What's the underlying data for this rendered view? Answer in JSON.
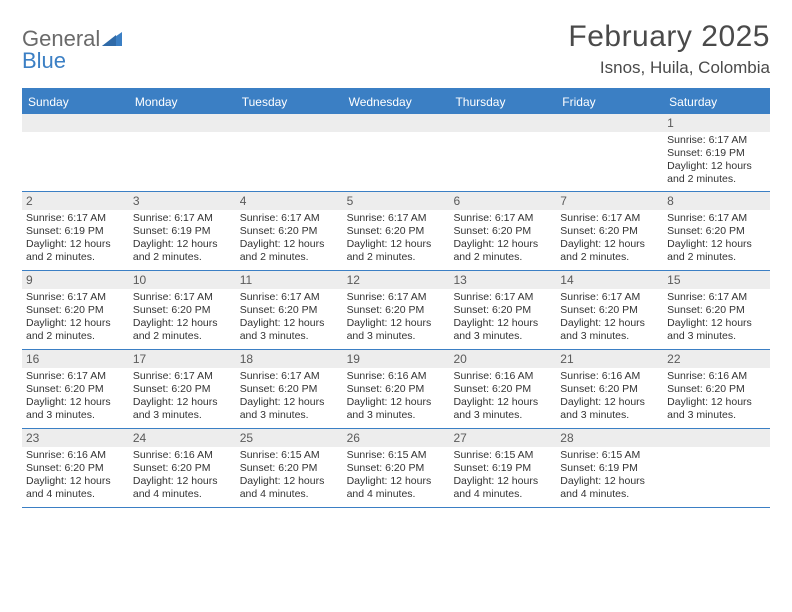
{
  "logo": {
    "word1": "General",
    "word2": "Blue"
  },
  "title": "February 2025",
  "location": "Isnos, Huila, Colombia",
  "colors": {
    "accent": "#3b7fc4",
    "daynum_bg": "#ededed",
    "text": "#333333",
    "logo_gray": "#6a6a6a"
  },
  "weekdays": [
    "Sunday",
    "Monday",
    "Tuesday",
    "Wednesday",
    "Thursday",
    "Friday",
    "Saturday"
  ],
  "weeks": [
    [
      {
        "n": "",
        "lines": []
      },
      {
        "n": "",
        "lines": []
      },
      {
        "n": "",
        "lines": []
      },
      {
        "n": "",
        "lines": []
      },
      {
        "n": "",
        "lines": []
      },
      {
        "n": "",
        "lines": []
      },
      {
        "n": "1",
        "lines": [
          "Sunrise: 6:17 AM",
          "Sunset: 6:19 PM",
          "Daylight: 12 hours and 2 minutes."
        ]
      }
    ],
    [
      {
        "n": "2",
        "lines": [
          "Sunrise: 6:17 AM",
          "Sunset: 6:19 PM",
          "Daylight: 12 hours and 2 minutes."
        ]
      },
      {
        "n": "3",
        "lines": [
          "Sunrise: 6:17 AM",
          "Sunset: 6:19 PM",
          "Daylight: 12 hours and 2 minutes."
        ]
      },
      {
        "n": "4",
        "lines": [
          "Sunrise: 6:17 AM",
          "Sunset: 6:20 PM",
          "Daylight: 12 hours and 2 minutes."
        ]
      },
      {
        "n": "5",
        "lines": [
          "Sunrise: 6:17 AM",
          "Sunset: 6:20 PM",
          "Daylight: 12 hours and 2 minutes."
        ]
      },
      {
        "n": "6",
        "lines": [
          "Sunrise: 6:17 AM",
          "Sunset: 6:20 PM",
          "Daylight: 12 hours and 2 minutes."
        ]
      },
      {
        "n": "7",
        "lines": [
          "Sunrise: 6:17 AM",
          "Sunset: 6:20 PM",
          "Daylight: 12 hours and 2 minutes."
        ]
      },
      {
        "n": "8",
        "lines": [
          "Sunrise: 6:17 AM",
          "Sunset: 6:20 PM",
          "Daylight: 12 hours and 2 minutes."
        ]
      }
    ],
    [
      {
        "n": "9",
        "lines": [
          "Sunrise: 6:17 AM",
          "Sunset: 6:20 PM",
          "Daylight: 12 hours and 2 minutes."
        ]
      },
      {
        "n": "10",
        "lines": [
          "Sunrise: 6:17 AM",
          "Sunset: 6:20 PM",
          "Daylight: 12 hours and 2 minutes."
        ]
      },
      {
        "n": "11",
        "lines": [
          "Sunrise: 6:17 AM",
          "Sunset: 6:20 PM",
          "Daylight: 12 hours and 3 minutes."
        ]
      },
      {
        "n": "12",
        "lines": [
          "Sunrise: 6:17 AM",
          "Sunset: 6:20 PM",
          "Daylight: 12 hours and 3 minutes."
        ]
      },
      {
        "n": "13",
        "lines": [
          "Sunrise: 6:17 AM",
          "Sunset: 6:20 PM",
          "Daylight: 12 hours and 3 minutes."
        ]
      },
      {
        "n": "14",
        "lines": [
          "Sunrise: 6:17 AM",
          "Sunset: 6:20 PM",
          "Daylight: 12 hours and 3 minutes."
        ]
      },
      {
        "n": "15",
        "lines": [
          "Sunrise: 6:17 AM",
          "Sunset: 6:20 PM",
          "Daylight: 12 hours and 3 minutes."
        ]
      }
    ],
    [
      {
        "n": "16",
        "lines": [
          "Sunrise: 6:17 AM",
          "Sunset: 6:20 PM",
          "Daylight: 12 hours and 3 minutes."
        ]
      },
      {
        "n": "17",
        "lines": [
          "Sunrise: 6:17 AM",
          "Sunset: 6:20 PM",
          "Daylight: 12 hours and 3 minutes."
        ]
      },
      {
        "n": "18",
        "lines": [
          "Sunrise: 6:17 AM",
          "Sunset: 6:20 PM",
          "Daylight: 12 hours and 3 minutes."
        ]
      },
      {
        "n": "19",
        "lines": [
          "Sunrise: 6:16 AM",
          "Sunset: 6:20 PM",
          "Daylight: 12 hours and 3 minutes."
        ]
      },
      {
        "n": "20",
        "lines": [
          "Sunrise: 6:16 AM",
          "Sunset: 6:20 PM",
          "Daylight: 12 hours and 3 minutes."
        ]
      },
      {
        "n": "21",
        "lines": [
          "Sunrise: 6:16 AM",
          "Sunset: 6:20 PM",
          "Daylight: 12 hours and 3 minutes."
        ]
      },
      {
        "n": "22",
        "lines": [
          "Sunrise: 6:16 AM",
          "Sunset: 6:20 PM",
          "Daylight: 12 hours and 3 minutes."
        ]
      }
    ],
    [
      {
        "n": "23",
        "lines": [
          "Sunrise: 6:16 AM",
          "Sunset: 6:20 PM",
          "Daylight: 12 hours and 4 minutes."
        ]
      },
      {
        "n": "24",
        "lines": [
          "Sunrise: 6:16 AM",
          "Sunset: 6:20 PM",
          "Daylight: 12 hours and 4 minutes."
        ]
      },
      {
        "n": "25",
        "lines": [
          "Sunrise: 6:15 AM",
          "Sunset: 6:20 PM",
          "Daylight: 12 hours and 4 minutes."
        ]
      },
      {
        "n": "26",
        "lines": [
          "Sunrise: 6:15 AM",
          "Sunset: 6:20 PM",
          "Daylight: 12 hours and 4 minutes."
        ]
      },
      {
        "n": "27",
        "lines": [
          "Sunrise: 6:15 AM",
          "Sunset: 6:19 PM",
          "Daylight: 12 hours and 4 minutes."
        ]
      },
      {
        "n": "28",
        "lines": [
          "Sunrise: 6:15 AM",
          "Sunset: 6:19 PM",
          "Daylight: 12 hours and 4 minutes."
        ]
      },
      {
        "n": "",
        "lines": []
      }
    ]
  ]
}
